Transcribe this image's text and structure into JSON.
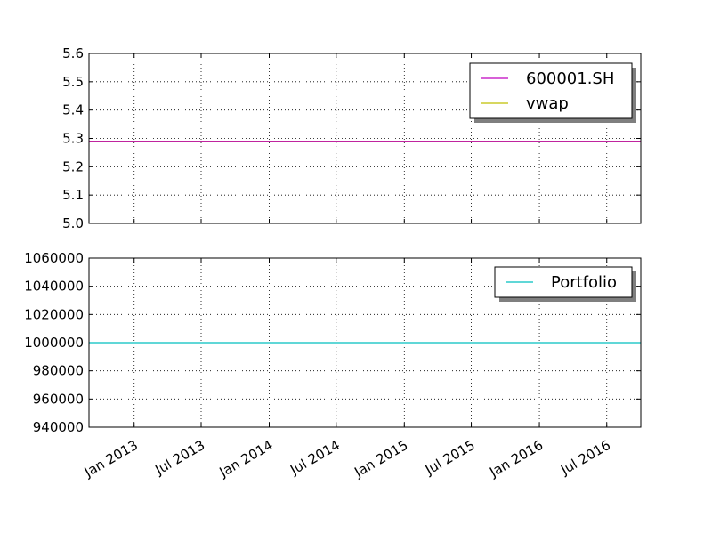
{
  "chart_data": [
    {
      "type": "line",
      "title": "",
      "xlabel": "",
      "ylabel": "",
      "ylim": [
        5.0,
        5.6
      ],
      "yticks": [
        "5.0",
        "5.1",
        "5.2",
        "5.3",
        "5.4",
        "5.5",
        "5.6"
      ],
      "grid": true,
      "legend_position": "top-right",
      "series": [
        {
          "name": "600001.SH",
          "color": "#bf00bf",
          "x": [
            "2012-09-01",
            "2016-10-01"
          ],
          "y": [
            5.29,
            5.29
          ]
        },
        {
          "name": "vwap",
          "color": "#bfbf00",
          "x": [
            "2012-09-01",
            "2016-10-01"
          ],
          "y": [
            5.29,
            5.29
          ]
        }
      ]
    },
    {
      "type": "line",
      "title": "",
      "xlabel": "",
      "ylabel": "",
      "ylim": [
        940000,
        1060000
      ],
      "yticks": [
        "940000",
        "960000",
        "980000",
        "1000000",
        "1020000",
        "1040000",
        "1060000"
      ],
      "grid": true,
      "legend_position": "top-right",
      "series": [
        {
          "name": "Portfolio",
          "color": "#00bfbf",
          "x": [
            "2012-09-01",
            "2016-10-01"
          ],
          "y": [
            1000000,
            1000000
          ]
        }
      ]
    }
  ],
  "x_axis": {
    "range": [
      "2012-09-01",
      "2016-10-01"
    ],
    "ticks": [
      {
        "date": "2013-01-01",
        "label": "Jan 2013"
      },
      {
        "date": "2013-07-01",
        "label": "Jul 2013"
      },
      {
        "date": "2014-01-01",
        "label": "Jan 2014"
      },
      {
        "date": "2014-07-01",
        "label": "Jul 2014"
      },
      {
        "date": "2015-01-01",
        "label": "Jan 2015"
      },
      {
        "date": "2015-07-01",
        "label": "Jul 2015"
      },
      {
        "date": "2016-01-01",
        "label": "Jan 2016"
      },
      {
        "date": "2016-07-01",
        "label": "Jul 2016"
      }
    ]
  }
}
